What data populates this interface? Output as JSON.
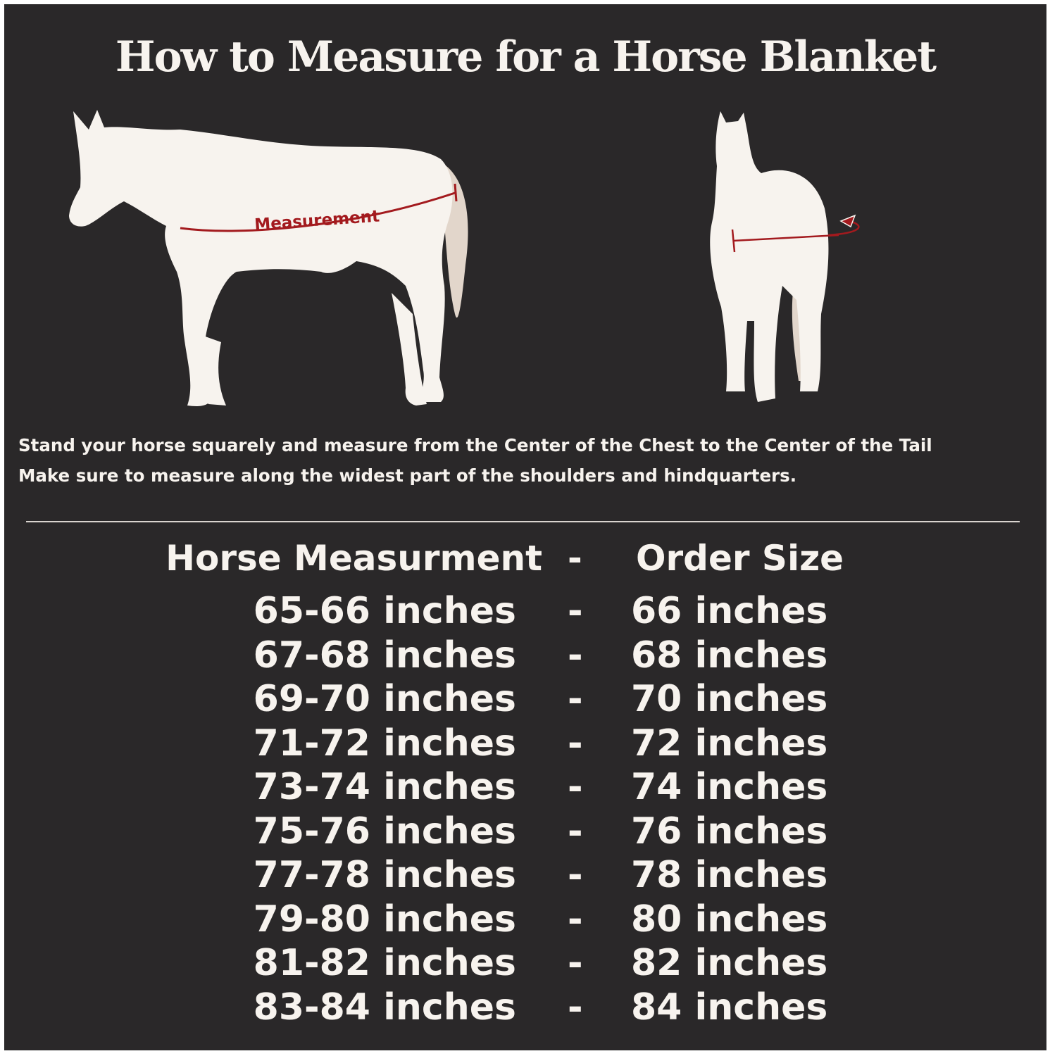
{
  "title": "How to Measure for a Horse Blanket",
  "illustration": {
    "side_label": "Measurement",
    "side_icon": "horse-side-view",
    "front_icon": "horse-front-view",
    "colors": {
      "background": "#2a2829",
      "horse": "#f7f3ee",
      "tail": "#e2d6cb",
      "measure_line": "#a31a1e"
    }
  },
  "instructions": [
    "Stand your horse squarely and measure from the Center of the Chest to the Center of the Tail",
    "Make sure to measure along the widest part of the shoulders and hindquarters."
  ],
  "table": {
    "headers": {
      "measurement": "Horse Measurment",
      "separator": "-",
      "size": "Order Size"
    },
    "rows": [
      {
        "measurement": "65-66 inches",
        "separator": "-",
        "size": "66 inches"
      },
      {
        "measurement": "67-68 inches",
        "separator": "-",
        "size": "68 inches"
      },
      {
        "measurement": "69-70 inches",
        "separator": "-",
        "size": "70 inches"
      },
      {
        "measurement": "71-72 inches",
        "separator": "-",
        "size": "72 inches"
      },
      {
        "measurement": "73-74 inches",
        "separator": "-",
        "size": "74 inches"
      },
      {
        "measurement": "75-76 inches",
        "separator": "-",
        "size": "76 inches"
      },
      {
        "measurement": "77-78 inches",
        "separator": "-",
        "size": "78 inches"
      },
      {
        "measurement": "79-80 inches",
        "separator": "-",
        "size": "80 inches"
      },
      {
        "measurement": "81-82 inches",
        "separator": "-",
        "size": "82 inches"
      },
      {
        "measurement": "83-84 inches",
        "separator": "-",
        "size": "84 inches"
      }
    ]
  }
}
